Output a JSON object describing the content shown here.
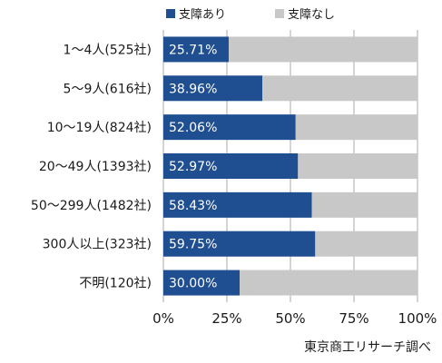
{
  "chart_data": {
    "type": "bar",
    "orientation": "horizontal",
    "stacked": true,
    "percent_stacked": true,
    "categories": [
      "1～4人(525社)",
      "5～9人(616社)",
      "10～19人(824社)",
      "20～49人(1393社)",
      "50～299人(1482社)",
      "300人以上(323社)",
      "不明(120社)"
    ],
    "series": [
      {
        "name": "支障あり",
        "values": [
          25.71,
          38.96,
          52.06,
          52.97,
          58.43,
          59.75,
          30.0
        ],
        "color": "#1f4e91"
      },
      {
        "name": "支障なし",
        "values": [
          74.29,
          61.04,
          47.94,
          47.03,
          41.57,
          40.25,
          70.0
        ],
        "color": "#c8c8c8"
      }
    ],
    "data_labels": [
      "25.71%",
      "38.96%",
      "52.06%",
      "52.97%",
      "58.43%",
      "59.75%",
      "30.00%"
    ],
    "x_ticks": [
      "0%",
      "25%",
      "50%",
      "75%",
      "100%"
    ],
    "xlim": [
      0,
      100
    ],
    "grid": true,
    "legend_position": "top"
  },
  "source": "東京商工リサーチ調べ"
}
